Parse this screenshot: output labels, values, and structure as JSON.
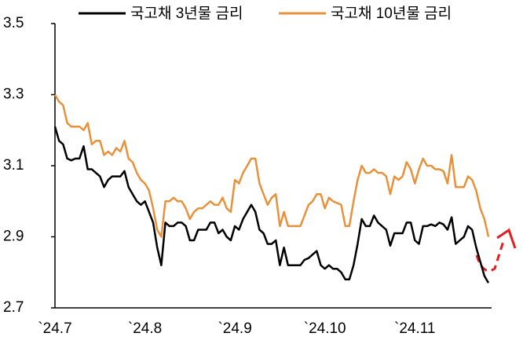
{
  "chart_data": {
    "type": "line",
    "categories": [
      "`24.7",
      null,
      null,
      null,
      null,
      null,
      null,
      null,
      null,
      null,
      null,
      null,
      null,
      null,
      null,
      null,
      null,
      null,
      null,
      null,
      null,
      null,
      "`24.8",
      null,
      null,
      null,
      null,
      null,
      null,
      null,
      null,
      null,
      null,
      null,
      null,
      null,
      null,
      null,
      null,
      null,
      null,
      null,
      null,
      null,
      "`24.9",
      null,
      null,
      null,
      null,
      null,
      null,
      null,
      null,
      null,
      null,
      null,
      null,
      null,
      null,
      null,
      null,
      null,
      null,
      null,
      null,
      null,
      "`24.10",
      null,
      null,
      null,
      null,
      null,
      null,
      null,
      null,
      null,
      null,
      null,
      null,
      null,
      null,
      null,
      null,
      null,
      null,
      null,
      null,
      null,
      "`24.11",
      null,
      null,
      null,
      null,
      null,
      null,
      null,
      null,
      null,
      null,
      null,
      null,
      null,
      null,
      null,
      null,
      null,
      null
    ],
    "series": [
      {
        "name": "국고채 3년물 금리",
        "color": "#000000",
        "values": [
          3.21,
          3.17,
          3.16,
          3.12,
          3.115,
          3.12,
          3.12,
          3.155,
          3.09,
          3.09,
          3.08,
          3.07,
          3.04,
          3.06,
          3.07,
          3.07,
          3.07,
          3.085,
          3.04,
          3.02,
          3.0,
          2.99,
          3.0,
          2.97,
          2.94,
          2.87,
          2.82,
          2.94,
          2.93,
          2.93,
          2.94,
          2.94,
          2.93,
          2.89,
          2.89,
          2.92,
          2.92,
          2.92,
          2.94,
          2.94,
          2.91,
          2.92,
          2.9,
          2.89,
          2.93,
          2.92,
          2.95,
          2.97,
          2.99,
          2.97,
          2.92,
          2.91,
          2.88,
          2.88,
          2.89,
          2.82,
          2.87,
          2.82,
          2.82,
          2.82,
          2.82,
          2.835,
          2.84,
          2.85,
          2.86,
          2.82,
          2.81,
          2.82,
          2.81,
          2.81,
          2.8,
          2.78,
          2.78,
          2.82,
          2.88,
          2.95,
          2.93,
          2.93,
          2.96,
          2.94,
          2.93,
          2.92,
          2.875,
          2.91,
          2.91,
          2.91,
          2.94,
          2.94,
          2.89,
          2.88,
          2.93,
          2.93,
          2.935,
          2.93,
          2.94,
          2.935,
          2.92,
          2.955,
          2.88,
          2.89,
          2.9,
          2.93,
          2.92,
          2.87,
          2.83,
          2.79,
          2.77
        ]
      },
      {
        "name": "국고채 10년물 금리",
        "color": "#e8913a",
        "values": [
          3.3,
          3.28,
          3.27,
          3.22,
          3.21,
          3.21,
          3.21,
          3.2,
          3.22,
          3.16,
          3.17,
          3.17,
          3.13,
          3.14,
          3.13,
          3.15,
          3.14,
          3.17,
          3.12,
          3.11,
          3.08,
          3.06,
          3.05,
          3.03,
          2.98,
          2.92,
          2.9,
          3.0,
          3.0,
          3.01,
          3.0,
          3.0,
          2.98,
          2.95,
          2.97,
          2.98,
          2.98,
          2.99,
          3.0,
          2.99,
          2.99,
          3.01,
          2.98,
          2.97,
          3.06,
          3.05,
          3.08,
          3.1,
          3.12,
          3.12,
          3.05,
          3.02,
          2.99,
          3.01,
          3.02,
          2.93,
          2.97,
          2.93,
          2.93,
          2.93,
          2.93,
          2.96,
          2.99,
          3.0,
          3.02,
          3.02,
          2.98,
          3.01,
          3.0,
          2.995,
          2.99,
          2.93,
          2.93,
          3.0,
          3.06,
          3.1,
          3.08,
          3.08,
          3.09,
          3.08,
          3.08,
          3.07,
          3.02,
          3.07,
          3.06,
          3.07,
          3.11,
          3.09,
          3.05,
          3.09,
          3.12,
          3.1,
          3.1,
          3.09,
          3.09,
          3.085,
          3.05,
          3.13,
          3.04,
          3.04,
          3.04,
          3.07,
          3.06,
          3.03,
          2.98,
          2.95,
          2.9
        ]
      }
    ],
    "ylim": [
      2.7,
      3.5
    ],
    "yticks": [
      2.7,
      2.9,
      3.1,
      3.3,
      3.5
    ]
  }
}
